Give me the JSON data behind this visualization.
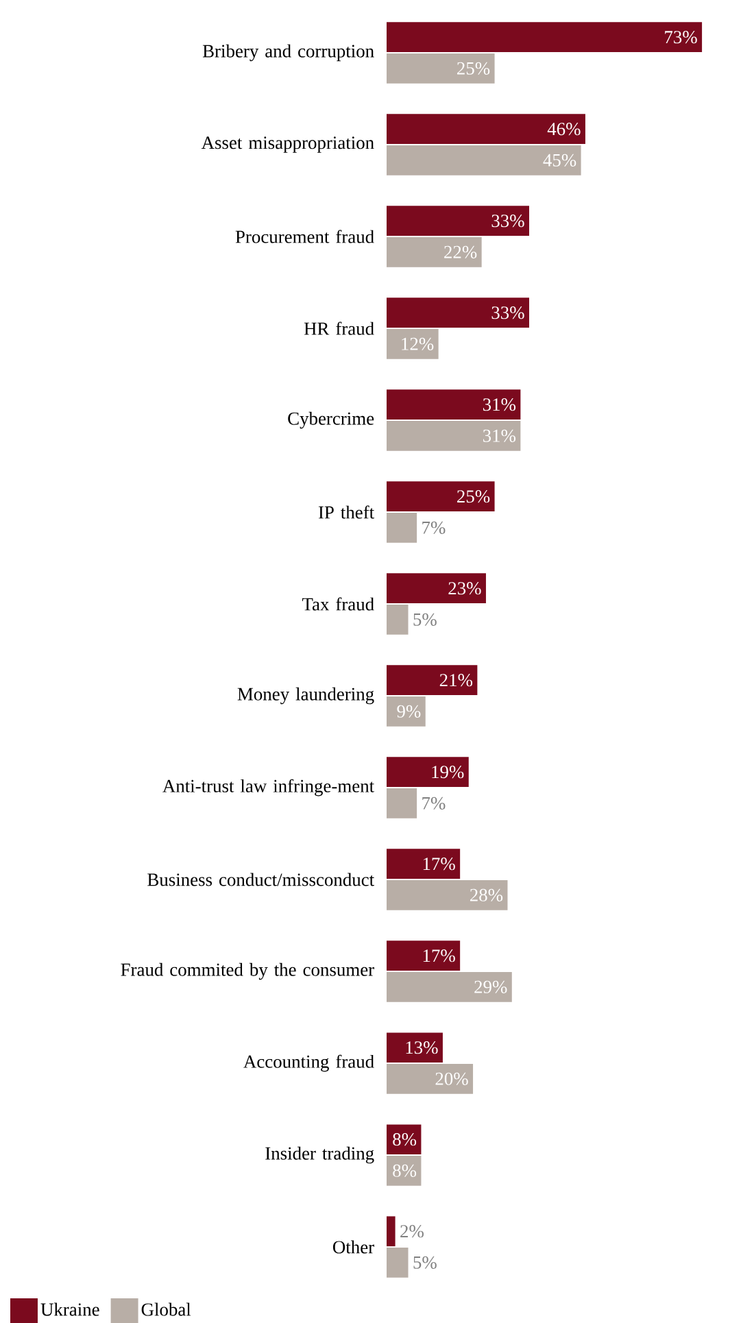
{
  "chart_data": {
    "type": "bar",
    "orientation": "horizontal",
    "legend": "bottom left",
    "categories": [
      "Bribery and corruption",
      "Asset misappropriation",
      "Procurement fraud",
      "HR fraud",
      "Cybercrime",
      "IP theft",
      "Tax fraud",
      "Money laundering",
      "Anti-trust law infringe-ment",
      "Business conduct/missconduct",
      "Fraud commited by the consumer",
      "Accounting fraud",
      "Insider trading",
      "Other"
    ],
    "series": [
      {
        "name": "Ukraine",
        "color": "#7b0a1e",
        "values": [
          73,
          46,
          33,
          33,
          31,
          25,
          23,
          21,
          19,
          17,
          17,
          13,
          8,
          2
        ],
        "value_labels": [
          "73%",
          "46%",
          "33%",
          "33%",
          "31%",
          "25%",
          "23%",
          "21%",
          "19%",
          "17%",
          "17%",
          "13%",
          "8%",
          "2%"
        ]
      },
      {
        "name": "Global",
        "color": "#b8aea6",
        "values": [
          25,
          45,
          22,
          12,
          31,
          7,
          5,
          9,
          7,
          28,
          29,
          20,
          8,
          5
        ],
        "value_labels": [
          "25%",
          "45%",
          "22%",
          "12%",
          "31%",
          "7%",
          "5%",
          "9%",
          "7%",
          "28%",
          "29%",
          "20%",
          "8%",
          "5%"
        ]
      }
    ]
  }
}
